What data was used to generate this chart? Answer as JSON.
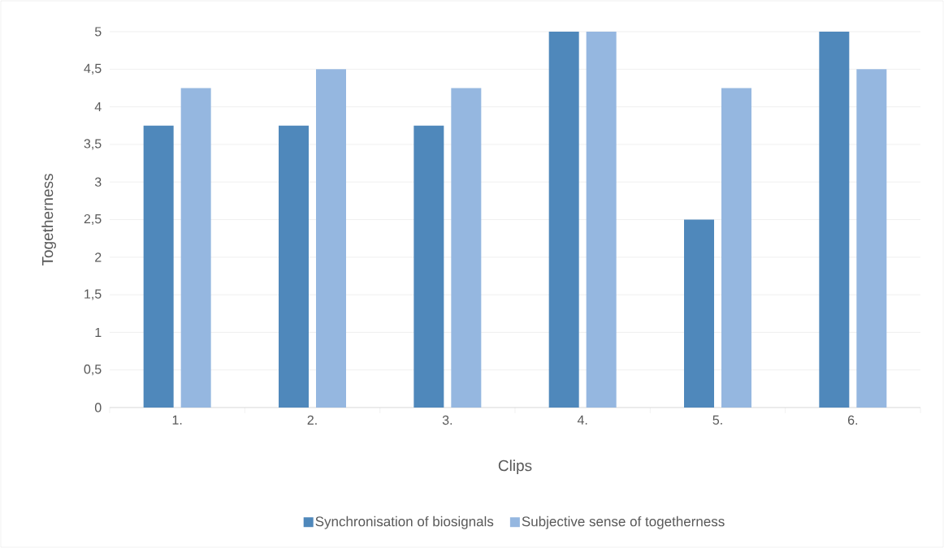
{
  "chart_data": {
    "type": "bar",
    "xlabel": "Clips",
    "ylabel": "Togetherness",
    "categories": [
      "1.",
      "2.",
      "3.",
      "4.",
      "5.",
      "6."
    ],
    "series": [
      {
        "name": "Synchronisation of biosignals",
        "color": "#4f88bb",
        "values": [
          3.75,
          3.75,
          3.75,
          5,
          2.5,
          5
        ]
      },
      {
        "name": "Subjective sense of togetherness",
        "color": "#95b7e0",
        "values": [
          4.25,
          4.5,
          4.25,
          5,
          4.25,
          4.5
        ]
      }
    ],
    "ylim": [
      0,
      5
    ],
    "yticks": [
      0,
      {
        "value": 0.5,
        "label": "0,5"
      },
      1,
      {
        "value": 1.5,
        "label": "1,5"
      },
      2,
      {
        "value": 2.5,
        "label": "2,5"
      },
      3,
      {
        "value": 3.5,
        "label": "3,5"
      },
      4,
      {
        "value": 4.5,
        "label": "4,5"
      },
      5
    ],
    "grid": "y",
    "legend": "bottom"
  }
}
